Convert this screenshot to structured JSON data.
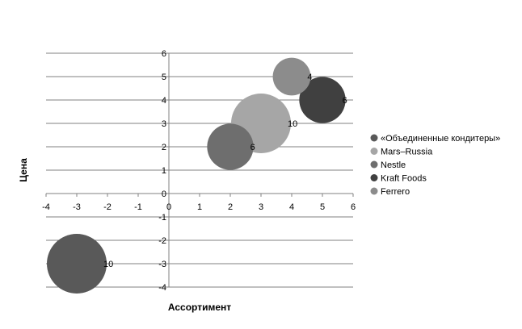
{
  "chart_data": {
    "type": "bubble",
    "xlabel": "Ассортимент",
    "ylabel": "Цена",
    "xlim": [
      -4,
      6
    ],
    "ylim": [
      -4,
      6
    ],
    "x_ticks": [
      "-4",
      "-3",
      "-2",
      "-1",
      "0",
      "1",
      "2",
      "3",
      "4",
      "5",
      "6"
    ],
    "y_ticks": [
      "6",
      "5",
      "4",
      "3",
      "2",
      "1",
      "0",
      "-1",
      "-2",
      "-3",
      "-4"
    ],
    "grid": "horizontal",
    "legend_position": "right",
    "series": [
      {
        "name": "«Объединенные кондитеры»",
        "x": -3,
        "y": -3,
        "size": 10,
        "label": "10",
        "color": "#595959"
      },
      {
        "name": "Mars–Russia",
        "x": 3,
        "y": 3,
        "size": 10,
        "label": "10",
        "color": "#a6a6a6"
      },
      {
        "name": "Nestle",
        "x": 2,
        "y": 2,
        "size": 6,
        "label": "6",
        "color": "#6e6e6e"
      },
      {
        "name": "Kraft Foods",
        "x": 5,
        "y": 4,
        "size": 6,
        "label": "6",
        "color": "#404040"
      },
      {
        "name": "Ferrero",
        "x": 4,
        "y": 5,
        "size": 4,
        "label": "4",
        "color": "#8c8c8c"
      }
    ]
  }
}
